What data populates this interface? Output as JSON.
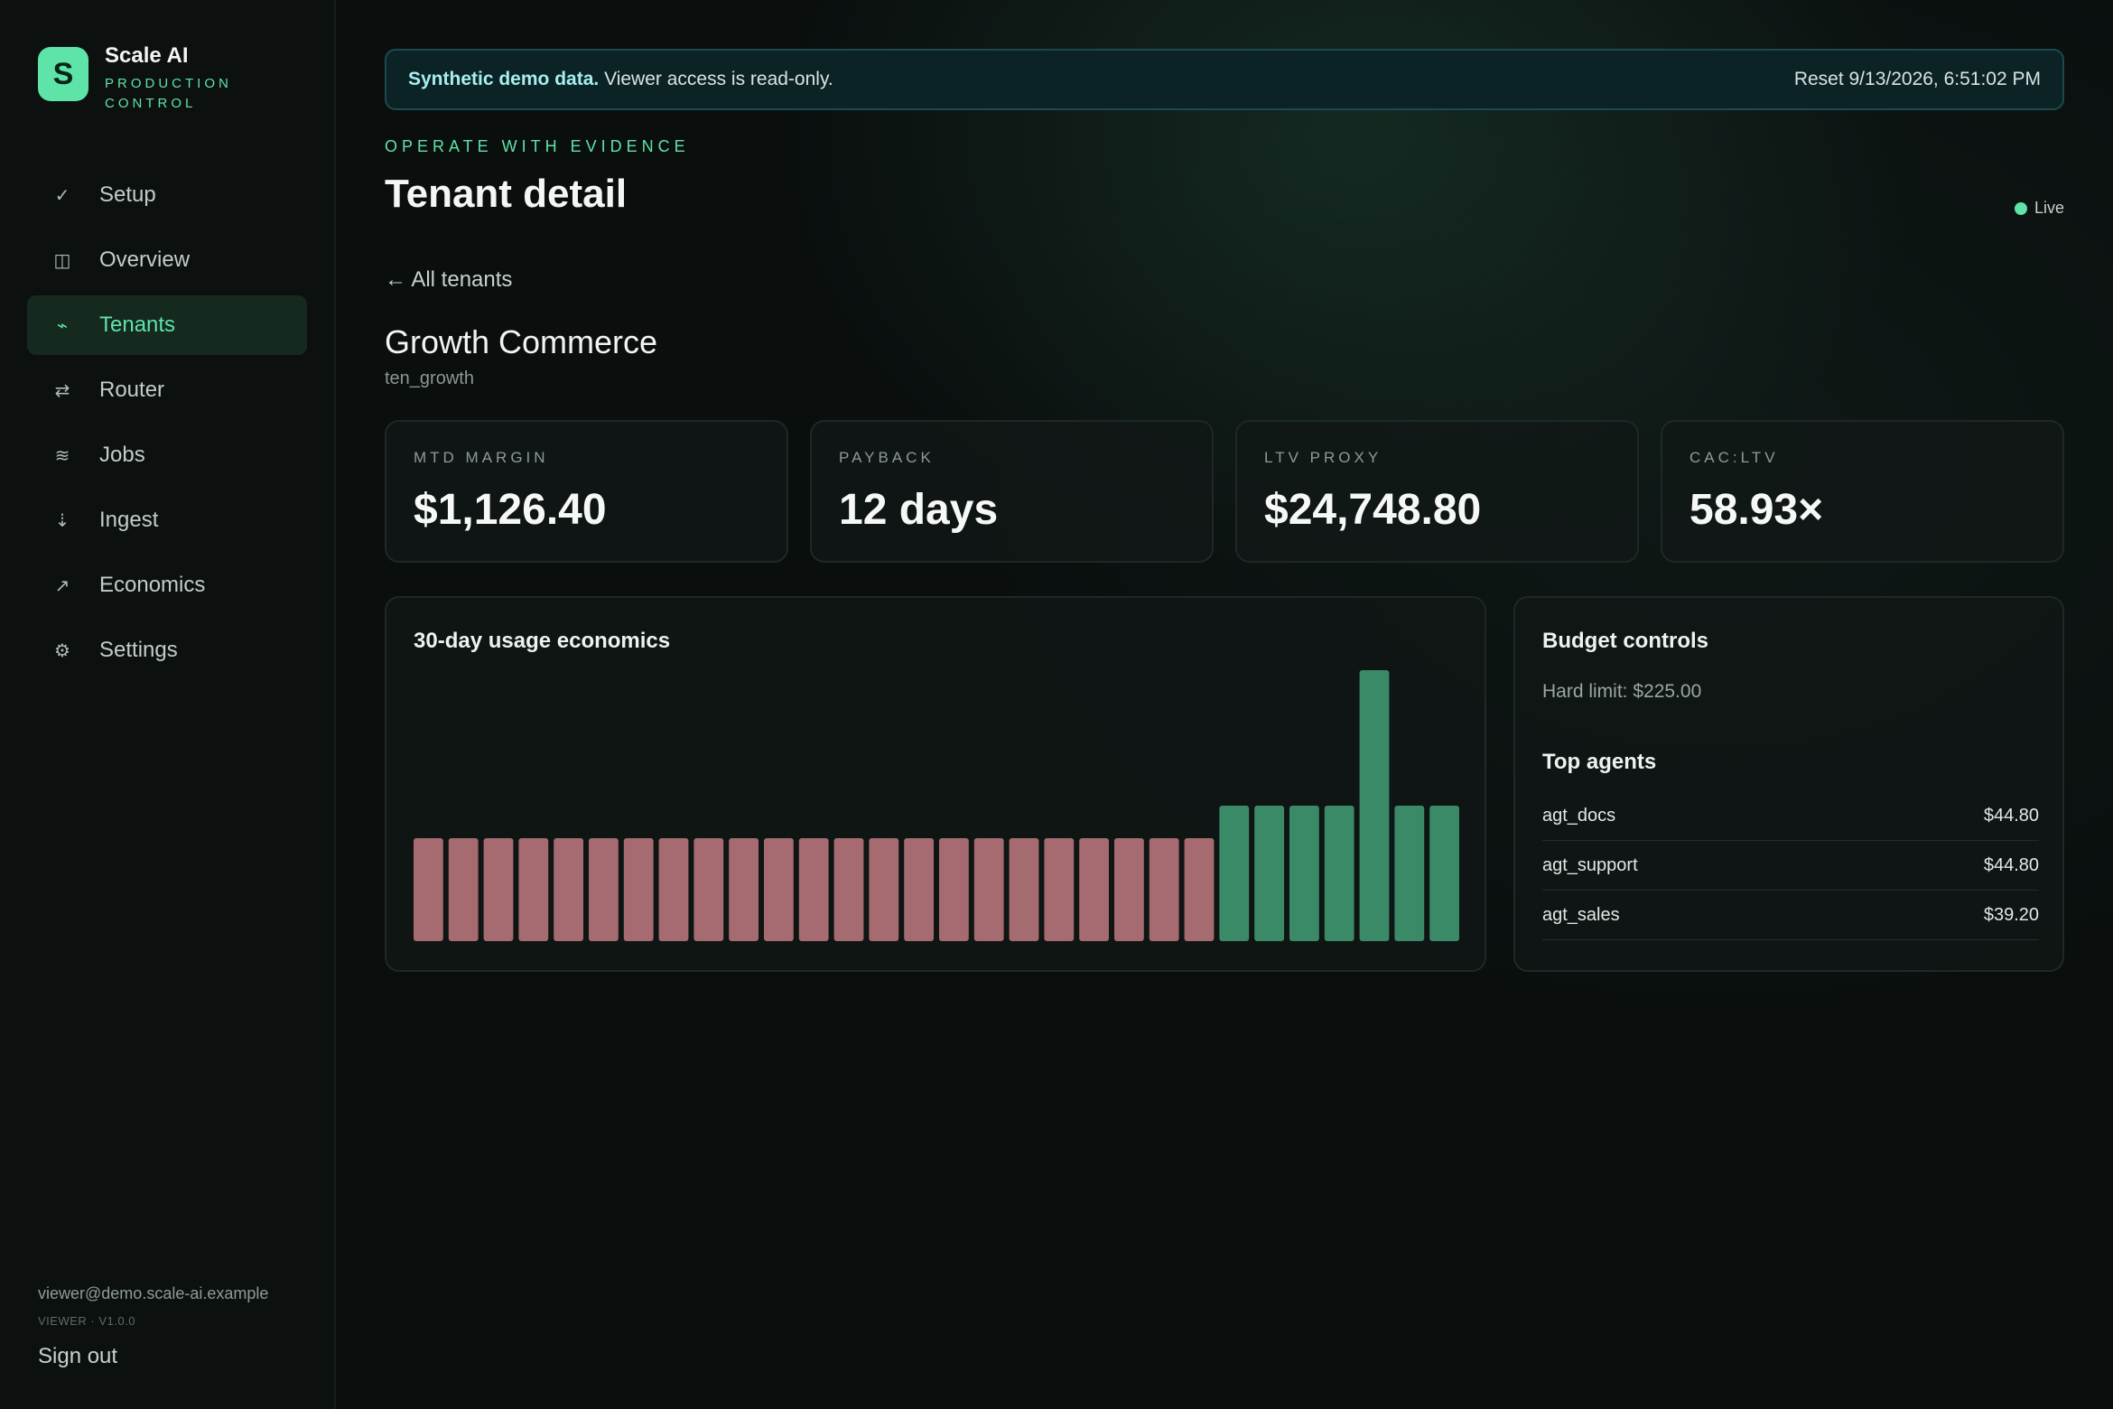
{
  "brand": {
    "logo_letter": "S",
    "name": "Scale AI",
    "subtitle": "PRODUCTION CONTROL",
    "accent": "#5ee3a8"
  },
  "nav": [
    {
      "label": "Setup",
      "icon": "check-icon",
      "glyph": "✓",
      "active": false
    },
    {
      "label": "Overview",
      "icon": "columns-icon",
      "glyph": "◫",
      "active": false
    },
    {
      "label": "Tenants",
      "icon": "pulse-icon",
      "glyph": "⌁",
      "active": true
    },
    {
      "label": "Router",
      "icon": "swap-icon",
      "glyph": "⇄",
      "active": false
    },
    {
      "label": "Jobs",
      "icon": "waves-icon",
      "glyph": "≋",
      "active": false
    },
    {
      "label": "Ingest",
      "icon": "download-icon",
      "glyph": "⇣",
      "active": false
    },
    {
      "label": "Economics",
      "icon": "trend-arrow-icon",
      "glyph": "↗",
      "active": false
    },
    {
      "label": "Settings",
      "icon": "gear-icon",
      "glyph": "⚙",
      "active": false
    }
  ],
  "user": {
    "email": "viewer@demo.scale-ai.example",
    "role": "VIEWER · V1.0.0",
    "signout": "Sign out"
  },
  "banner": {
    "bold": "Synthetic demo data.",
    "text": "Viewer access is read-only.",
    "reset": "Reset 9/13/2026, 6:51:02 PM"
  },
  "header": {
    "eyebrow": "OPERATE WITH EVIDENCE",
    "title": "Tenant detail",
    "live": "Live"
  },
  "back_link": "← All tenants",
  "tenant": {
    "name": "Growth Commerce",
    "id": "ten_growth"
  },
  "kpis": [
    {
      "label": "MTD MARGIN",
      "value": "$1,126.40"
    },
    {
      "label": "PAYBACK",
      "value": "12 days"
    },
    {
      "label": "LTV PROXY",
      "value": "$24,748.80"
    },
    {
      "label": "CAC:LTV",
      "value": "58.93×"
    }
  ],
  "chart_title": "30-day usage economics",
  "chart_data": {
    "type": "bar",
    "title": "30-day usage economics",
    "values": [
      0.38,
      0.38,
      0.38,
      0.38,
      0.38,
      0.38,
      0.38,
      0.38,
      0.38,
      0.38,
      0.38,
      0.38,
      0.38,
      0.38,
      0.38,
      0.38,
      0.38,
      0.38,
      0.38,
      0.38,
      0.38,
      0.38,
      0.38,
      0.5,
      0.5,
      0.5,
      0.5,
      1.0,
      0.5,
      0.5
    ],
    "colors": [
      "#a56b70",
      "#a56b70",
      "#a56b70",
      "#a56b70",
      "#a56b70",
      "#a56b70",
      "#a56b70",
      "#a56b70",
      "#a56b70",
      "#a56b70",
      "#a56b70",
      "#a56b70",
      "#a56b70",
      "#a56b70",
      "#a56b70",
      "#a56b70",
      "#a56b70",
      "#a56b70",
      "#a56b70",
      "#a56b70",
      "#a56b70",
      "#a56b70",
      "#a56b70",
      "#3a8a67",
      "#3a8a67",
      "#3a8a67",
      "#3a8a67",
      "#3a8a67",
      "#3a8a67",
      "#3a8a67"
    ],
    "ylim": [
      0,
      1
    ]
  },
  "budget": {
    "title": "Budget controls",
    "hard_limit": "Hard limit: $225.00",
    "top_agents_title": "Top agents",
    "agents": [
      {
        "name": "agt_docs",
        "value": "$44.80"
      },
      {
        "name": "agt_support",
        "value": "$44.80"
      },
      {
        "name": "agt_sales",
        "value": "$39.20"
      }
    ]
  }
}
